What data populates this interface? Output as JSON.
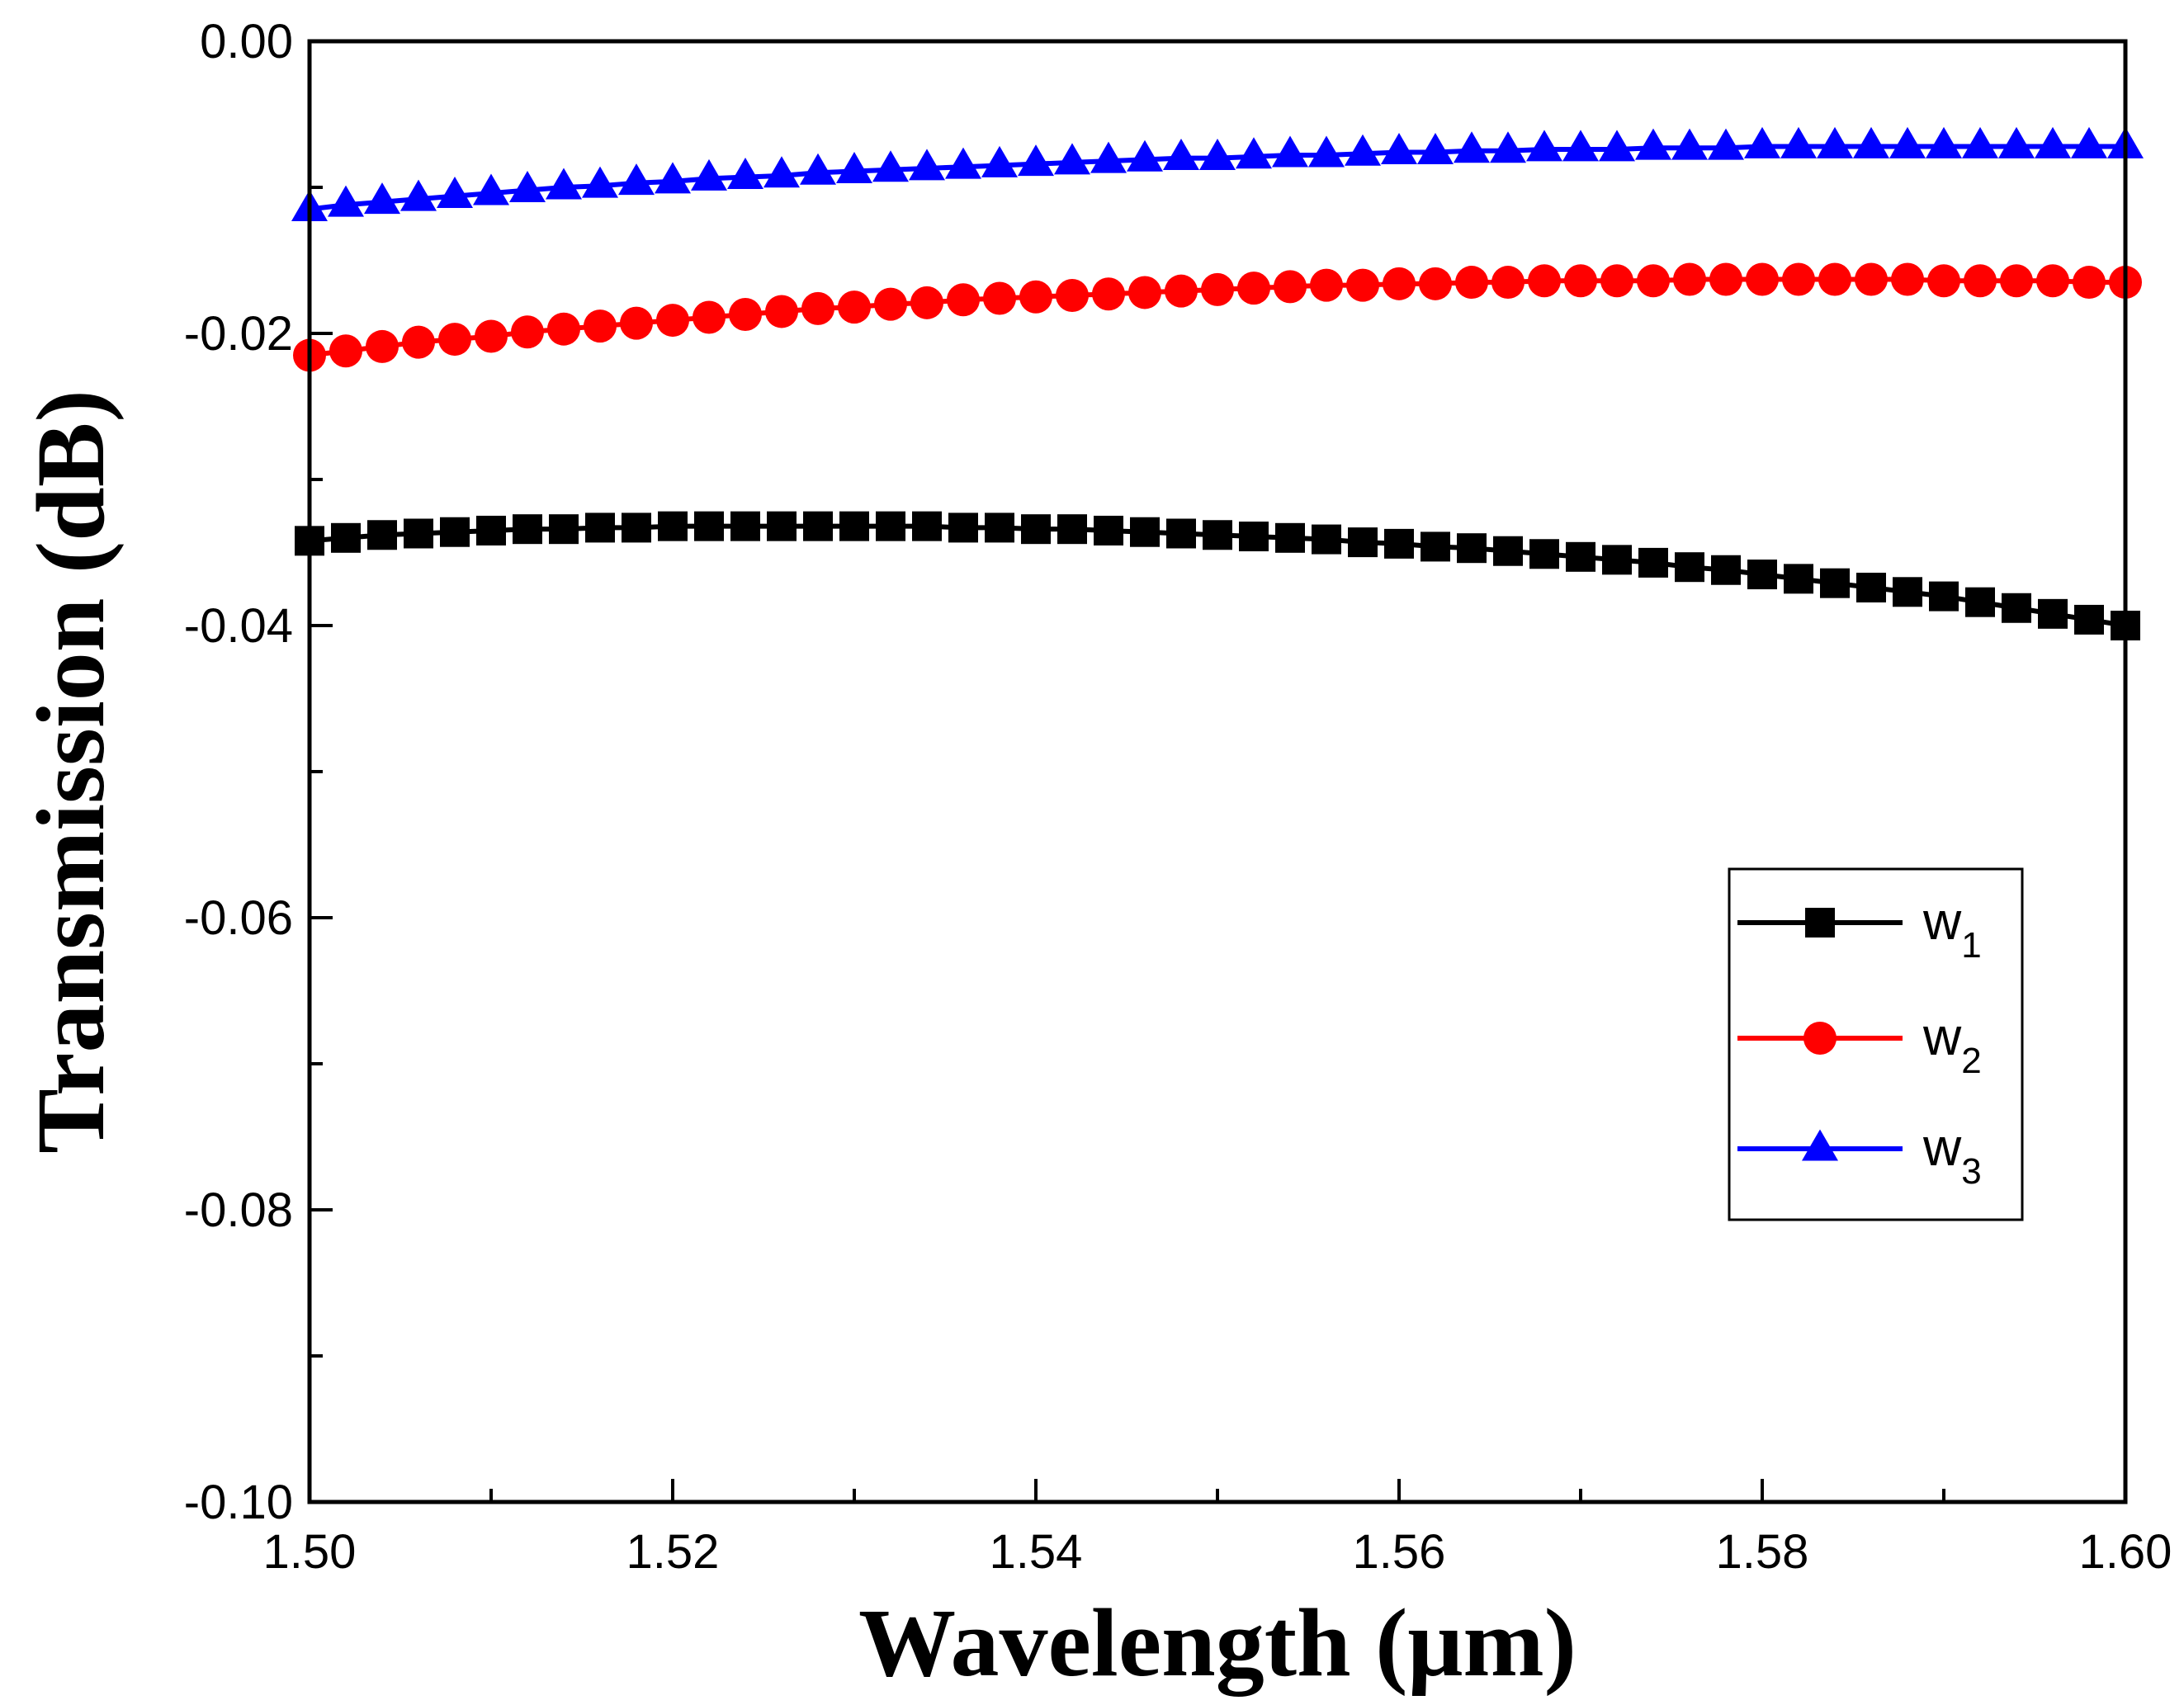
{
  "chart_data": {
    "type": "line",
    "title": "",
    "xlabel": "Wavelength (μm)",
    "ylabel": "Transmission (dB)",
    "xlim": [
      1.5,
      1.6
    ],
    "ylim": [
      -0.1,
      0.0
    ],
    "x_ticks": [
      "1.50",
      "1.52",
      "1.54",
      "1.56",
      "1.58",
      "1.60"
    ],
    "y_ticks": [
      "-0.10",
      "-0.08",
      "-0.06",
      "-0.04",
      "-0.02",
      "0.00"
    ],
    "grid": false,
    "legend_position": "right",
    "series": [
      {
        "name": "w1",
        "label_main": "w",
        "label_sub": "1",
        "color": "#000000",
        "marker": "square",
        "x": [
          1.5,
          1.502,
          1.504,
          1.506,
          1.508,
          1.51,
          1.512,
          1.514,
          1.516,
          1.518,
          1.52,
          1.522,
          1.524,
          1.526,
          1.528,
          1.53,
          1.532,
          1.534,
          1.536,
          1.538,
          1.54,
          1.542,
          1.544,
          1.546,
          1.548,
          1.55,
          1.552,
          1.554,
          1.556,
          1.558,
          1.56,
          1.562,
          1.564,
          1.566,
          1.568,
          1.57,
          1.572,
          1.574,
          1.576,
          1.578,
          1.58,
          1.582,
          1.584,
          1.586,
          1.588,
          1.59,
          1.592,
          1.594,
          1.596,
          1.598,
          1.6
        ],
        "y": [
          -0.0342,
          -0.034,
          -0.0338,
          -0.0337,
          -0.0336,
          -0.0335,
          -0.0334,
          -0.0334,
          -0.0333,
          -0.0333,
          -0.0332,
          -0.0332,
          -0.0332,
          -0.0332,
          -0.0332,
          -0.0332,
          -0.0332,
          -0.0332,
          -0.0333,
          -0.0333,
          -0.0334,
          -0.0334,
          -0.0335,
          -0.0336,
          -0.0337,
          -0.0338,
          -0.0339,
          -0.034,
          -0.0341,
          -0.0343,
          -0.0344,
          -0.0346,
          -0.0347,
          -0.0349,
          -0.0351,
          -0.0353,
          -0.0355,
          -0.0357,
          -0.036,
          -0.0362,
          -0.0365,
          -0.0368,
          -0.0371,
          -0.0374,
          -0.0377,
          -0.038,
          -0.0384,
          -0.0388,
          -0.0392,
          -0.0396,
          -0.04
        ]
      },
      {
        "name": "w2",
        "label_main": "w",
        "label_sub": "2",
        "color": "#ff0000",
        "marker": "circle",
        "x": [
          1.5,
          1.502,
          1.504,
          1.506,
          1.508,
          1.51,
          1.512,
          1.514,
          1.516,
          1.518,
          1.52,
          1.522,
          1.524,
          1.526,
          1.528,
          1.53,
          1.532,
          1.534,
          1.536,
          1.538,
          1.54,
          1.542,
          1.544,
          1.546,
          1.548,
          1.55,
          1.552,
          1.554,
          1.556,
          1.558,
          1.56,
          1.562,
          1.564,
          1.566,
          1.568,
          1.57,
          1.572,
          1.574,
          1.576,
          1.578,
          1.58,
          1.582,
          1.584,
          1.586,
          1.588,
          1.59,
          1.592,
          1.594,
          1.596,
          1.598,
          1.6
        ],
        "y": [
          -0.0215,
          -0.0212,
          -0.0209,
          -0.0206,
          -0.0204,
          -0.0202,
          -0.0199,
          -0.0197,
          -0.0195,
          -0.0193,
          -0.0191,
          -0.0189,
          -0.0187,
          -0.0185,
          -0.0183,
          -0.0182,
          -0.018,
          -0.0179,
          -0.0177,
          -0.0176,
          -0.0175,
          -0.0174,
          -0.0173,
          -0.0172,
          -0.0171,
          -0.017,
          -0.0169,
          -0.0168,
          -0.0167,
          -0.0167,
          -0.0166,
          -0.0166,
          -0.0165,
          -0.0165,
          -0.0164,
          -0.0164,
          -0.0164,
          -0.0164,
          -0.0163,
          -0.0163,
          -0.0163,
          -0.0163,
          -0.0163,
          -0.0163,
          -0.0163,
          -0.0164,
          -0.0164,
          -0.0164,
          -0.0164,
          -0.0165,
          -0.0165
        ]
      },
      {
        "name": "w3",
        "label_main": "w",
        "label_sub": "3",
        "color": "#0000ff",
        "marker": "triangle",
        "x": [
          1.5,
          1.502,
          1.504,
          1.506,
          1.508,
          1.51,
          1.512,
          1.514,
          1.516,
          1.518,
          1.52,
          1.522,
          1.524,
          1.526,
          1.528,
          1.53,
          1.532,
          1.534,
          1.536,
          1.538,
          1.54,
          1.542,
          1.544,
          1.546,
          1.548,
          1.55,
          1.552,
          1.554,
          1.556,
          1.558,
          1.56,
          1.562,
          1.564,
          1.566,
          1.568,
          1.57,
          1.572,
          1.574,
          1.576,
          1.578,
          1.58,
          1.582,
          1.584,
          1.586,
          1.588,
          1.59,
          1.592,
          1.594,
          1.596,
          1.598,
          1.6
        ],
        "y": [
          -0.0115,
          -0.0112,
          -0.011,
          -0.0108,
          -0.0106,
          -0.0104,
          -0.0102,
          -0.01,
          -0.0099,
          -0.0097,
          -0.0096,
          -0.0094,
          -0.0093,
          -0.0092,
          -0.009,
          -0.0089,
          -0.0088,
          -0.0087,
          -0.0086,
          -0.0085,
          -0.0084,
          -0.0083,
          -0.0082,
          -0.0081,
          -0.008,
          -0.008,
          -0.0079,
          -0.0078,
          -0.0078,
          -0.0077,
          -0.0076,
          -0.0076,
          -0.0075,
          -0.0075,
          -0.0074,
          -0.0074,
          -0.0074,
          -0.0073,
          -0.0073,
          -0.0073,
          -0.0072,
          -0.0072,
          -0.0072,
          -0.0072,
          -0.0072,
          -0.0072,
          -0.0072,
          -0.0072,
          -0.0072,
          -0.0072,
          -0.0072
        ]
      }
    ]
  }
}
